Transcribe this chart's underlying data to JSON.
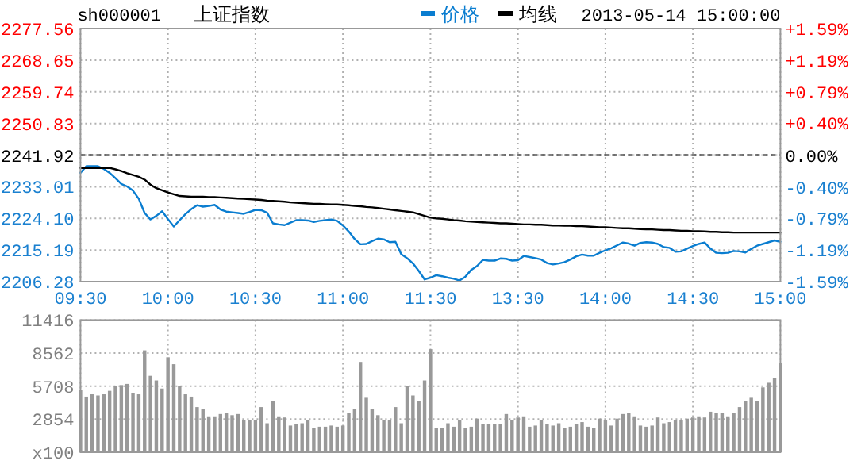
{
  "chart_data": [
    {
      "type": "line",
      "title": "上证指数",
      "subtitle": "sh000001",
      "annotations": [
        "2013-05-14 15:00:00"
      ],
      "legend": "top",
      "grid": true,
      "categories": [
        "09:30",
        null,
        null,
        null,
        null,
        null,
        null,
        null,
        null,
        null,
        null,
        null,
        null,
        null,
        null,
        "10:00",
        null,
        null,
        null,
        null,
        null,
        null,
        null,
        null,
        null,
        null,
        null,
        null,
        null,
        null,
        "10:30",
        null,
        null,
        null,
        null,
        null,
        null,
        null,
        null,
        null,
        null,
        null,
        null,
        null,
        null,
        "11:00",
        null,
        null,
        null,
        null,
        null,
        null,
        null,
        null,
        null,
        null,
        null,
        null,
        null,
        null,
        "11:30",
        null,
        null,
        null,
        null,
        null,
        null,
        null,
        null,
        null,
        null,
        null,
        null,
        null,
        null,
        "13:30",
        null,
        null,
        null,
        null,
        null,
        null,
        null,
        null,
        null,
        null,
        null,
        null,
        null,
        null,
        "14:00",
        null,
        null,
        null,
        null,
        null,
        null,
        null,
        null,
        null,
        null,
        null,
        null,
        null,
        null,
        "14:30",
        null,
        null,
        null,
        null,
        null,
        null,
        null,
        null,
        null,
        null,
        null,
        null,
        null,
        null,
        "15:00"
      ],
      "ylim": [
        2206.28,
        2277.56
      ],
      "yticks": [
        2206.28,
        2215.19,
        {
          "value": 2224.1,
          "label": "2224.10"
        },
        2233.01,
        2241.92,
        2250.83,
        2259.74,
        2268.65,
        2277.56
      ],
      "y2lim": [
        -1.59,
        1.59
      ],
      "y2ticks": [
        {
          "value": -1.59,
          "label": "-1.59%"
        },
        {
          "value": -1.19,
          "label": "-1.19%"
        },
        {
          "value": -0.79,
          "label": "-0.79%"
        },
        {
          "value": -0.4,
          "label": "-0.40%"
        },
        {
          "value": 0,
          "label": "0.00%"
        },
        {
          "value": 0.4,
          "label": "+0.40%"
        },
        {
          "value": 0.79,
          "label": "+0.79%"
        },
        {
          "value": 1.19,
          "label": "+1.19%"
        },
        {
          "value": 1.59,
          "label": "+1.59%"
        }
      ],
      "ref_lines": [
        {
          "axis": "y",
          "value": 2241.92,
          "line_style": "dashed",
          "color": "#000000"
        }
      ],
      "series": [
        {
          "name": "价格",
          "color": "#0a7dd0",
          "values": [
            2236.9,
            2238.8,
            2238.8,
            2238.8,
            2238.0,
            2236.9,
            2235.4,
            2233.8,
            2233.1,
            2231.9,
            2229.6,
            2225.6,
            2223.8,
            2224.8,
            2226.1,
            2223.9,
            2221.8,
            2223.6,
            2225.3,
            2226.7,
            2227.8,
            2227.4,
            2227.6,
            2227.9,
            2226.6,
            2226.0,
            2225.8,
            2225.6,
            2225.4,
            2225.9,
            2226.5,
            2226.4,
            2225.7,
            2222.7,
            2222.4,
            2222.2,
            2222.9,
            2223.6,
            2223.6,
            2223.5,
            2223.1,
            2223.4,
            2223.6,
            2223.8,
            2223.4,
            2222.1,
            2220.4,
            2218.3,
            2216.8,
            2216.9,
            2217.7,
            2218.4,
            2218.2,
            2217.4,
            2217.5,
            2214.0,
            2212.9,
            2211.4,
            2209.3,
            2206.9,
            2207.4,
            2208.1,
            2207.8,
            2207.4,
            2207.1,
            2206.6,
            2207.7,
            2209.6,
            2210.7,
            2212.4,
            2212.2,
            2212.2,
            2212.8,
            2212.7,
            2212.2,
            2212.3,
            2213.5,
            2213.2,
            2212.9,
            2212.5,
            2211.5,
            2211.1,
            2211.4,
            2211.8,
            2212.5,
            2213.4,
            2213.9,
            2213.6,
            2213.6,
            2214.4,
            2215.1,
            2215.7,
            2216.5,
            2217.3,
            2217.0,
            2216.4,
            2217.2,
            2217.4,
            2217.3,
            2216.9,
            2216.0,
            2215.8,
            2214.7,
            2214.8,
            2215.6,
            2216.3,
            2216.9,
            2217.3,
            2215.6,
            2214.4,
            2214.3,
            2214.4,
            2214.9,
            2214.8,
            2214.5,
            2215.5,
            2216.4,
            2216.9,
            2217.4,
            2217.9,
            2217.5
          ]
        },
        {
          "name": "均线",
          "color": "#000000",
          "values": [
            2238.3,
            2238.3,
            2238.3,
            2238.3,
            2238.3,
            2238.3,
            2237.9,
            2237.4,
            2236.8,
            2236.3,
            2235.8,
            2235.0,
            2233.6,
            2232.6,
            2232.0,
            2231.4,
            2230.9,
            2230.4,
            2230.3,
            2230.2,
            2230.2,
            2230.2,
            2230.1,
            2230.1,
            2230.0,
            2229.9,
            2229.8,
            2229.7,
            2229.6,
            2229.5,
            2229.4,
            2229.3,
            2229.1,
            2229.0,
            2228.9,
            2228.8,
            2228.6,
            2228.5,
            2228.4,
            2228.3,
            2228.2,
            2228.2,
            2228.1,
            2228.0,
            2228.0,
            2227.9,
            2227.8,
            2227.6,
            2227.5,
            2227.3,
            2227.2,
            2227.0,
            2226.8,
            2226.6,
            2226.4,
            2226.2,
            2226.0,
            2225.8,
            2225.3,
            2224.8,
            2224.3,
            2224.1,
            2224.0,
            2223.8,
            2223.6,
            2223.5,
            2223.3,
            2223.2,
            2223.1,
            2223.0,
            2222.9,
            2222.8,
            2222.7,
            2222.7,
            2222.6,
            2222.5,
            2222.4,
            2222.4,
            2222.3,
            2222.3,
            2222.2,
            2222.1,
            2222.1,
            2222.0,
            2222.0,
            2221.9,
            2221.9,
            2221.8,
            2221.7,
            2221.6,
            2221.6,
            2221.5,
            2221.4,
            2221.3,
            2221.3,
            2221.2,
            2221.1,
            2221.0,
            2221.0,
            2220.9,
            2220.8,
            2220.8,
            2220.7,
            2220.6,
            2220.6,
            2220.5,
            2220.5,
            2220.4,
            2220.3,
            2220.3,
            2220.2,
            2220.2,
            2220.1,
            2220.1,
            2220.1,
            2220.1,
            2220.1,
            2220.1,
            2220.1,
            2220.1,
            2220.1
          ]
        }
      ]
    },
    {
      "type": "bar",
      "grid": true,
      "tick_labels": "y",
      "color": "#999999",
      "categories": [
        null,
        null,
        null,
        null,
        null,
        null,
        null,
        null,
        null,
        null,
        null,
        null,
        null,
        null,
        null,
        null,
        null,
        null,
        null,
        null,
        null,
        null,
        null,
        null,
        null,
        null,
        null,
        null,
        null,
        null,
        null,
        null,
        null,
        null,
        null,
        null,
        null,
        null,
        null,
        null,
        null,
        null,
        null,
        null,
        null,
        null,
        null,
        null,
        null,
        null,
        null,
        null,
        null,
        null,
        null,
        null,
        null,
        null,
        null,
        null,
        null,
        null,
        null,
        null,
        null,
        null,
        null,
        null,
        null,
        null,
        null,
        null,
        null,
        null,
        null,
        null,
        null,
        null,
        null,
        null,
        null,
        null,
        null,
        null,
        null,
        null,
        null,
        null,
        null,
        null,
        null,
        null,
        null,
        null,
        null,
        null,
        null,
        null,
        null,
        null,
        null,
        null,
        null,
        null,
        null,
        null,
        null,
        null,
        null,
        null,
        null,
        null,
        null,
        null,
        null,
        null,
        null,
        null,
        null,
        null,
        null
      ],
      "ylim": [
        0,
        11416
      ],
      "yticks": [
        {
          "value": 0,
          "label": "x100"
        },
        2854,
        5708,
        8562,
        11416
      ],
      "values": [
        5400,
        4800,
        5000,
        4900,
        5000,
        5300,
        5700,
        5800,
        5900,
        5100,
        5000,
        8800,
        6600,
        6200,
        5500,
        8200,
        7600,
        5700,
        5000,
        4800,
        3900,
        3700,
        3100,
        3100,
        3300,
        3400,
        3200,
        3300,
        2800,
        2800,
        2800,
        3900,
        2500,
        4400,
        3100,
        3000,
        2300,
        2400,
        2500,
        2800,
        2100,
        2200,
        2200,
        2300,
        2200,
        2300,
        3400,
        3700,
        7800,
        4700,
        3700,
        3200,
        2800,
        2800,
        3900,
        2500,
        5700,
        4900,
        4400,
        6200,
        8900,
        2100,
        2100,
        2500,
        2200,
        2800,
        2100,
        2200,
        2900,
        2400,
        2400,
        2400,
        2400,
        3300,
        2800,
        3000,
        3100,
        2200,
        2300,
        2800,
        2400,
        2300,
        2500,
        2100,
        2200,
        2400,
        2600,
        2200,
        2100,
        2900,
        2800,
        2300,
        2900,
        3300,
        3400,
        3100,
        2300,
        2200,
        2300,
        3000,
        2500,
        2600,
        2800,
        2800,
        2900,
        3000,
        3100,
        3000,
        3500,
        3400,
        3400,
        3100,
        3400,
        3900,
        4400,
        4700,
        4400,
        5600,
        6000,
        6400,
        7700
      ]
    }
  ]
}
